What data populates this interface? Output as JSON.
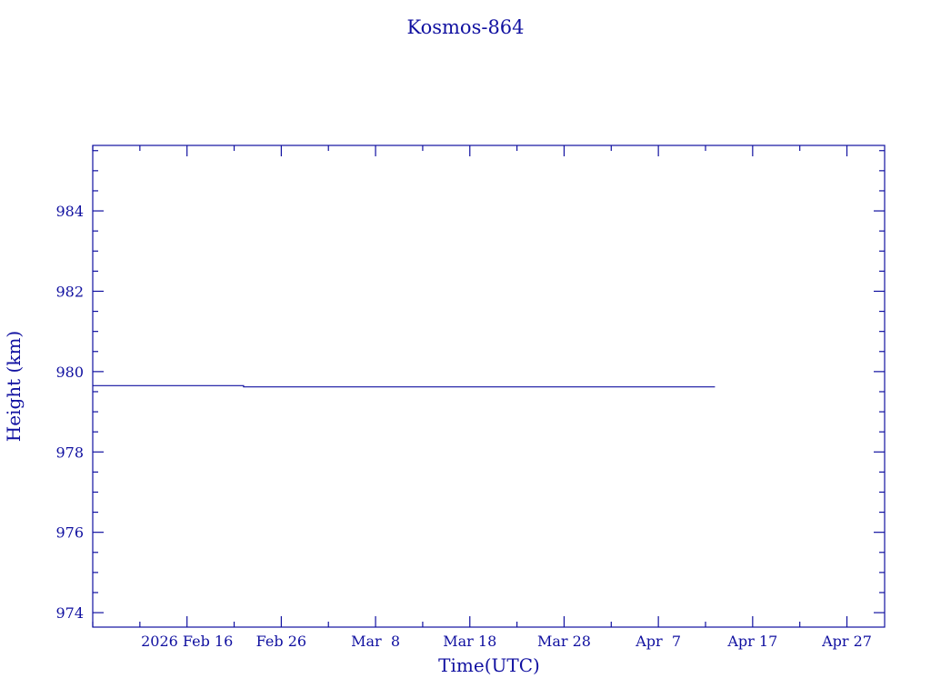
{
  "chart_data": {
    "type": "line",
    "title": "Kosmos-864",
    "xlabel": "Time(UTC)",
    "ylabel": "Height (km)",
    "xlim": [
      "2026-02-06",
      "2026-05-01"
    ],
    "ylim": [
      973.64,
      985.63
    ],
    "x_ticks": [
      {
        "date": "2026-02-16",
        "label": "2026 Feb 16"
      },
      {
        "date": "2026-02-26",
        "label": "Feb 26"
      },
      {
        "date": "2026-03-08",
        "label": "Mar  8"
      },
      {
        "date": "2026-03-18",
        "label": "Mar 18"
      },
      {
        "date": "2026-03-28",
        "label": "Mar 28"
      },
      {
        "date": "2026-04-07",
        "label": "Apr  7"
      },
      {
        "date": "2026-04-17",
        "label": "Apr 17"
      },
      {
        "date": "2026-04-27",
        "label": "Apr 27"
      }
    ],
    "x_minor_step_days": 5,
    "y_ticks": [
      974,
      976,
      978,
      980,
      982,
      984
    ],
    "y_minor_step": 0.5,
    "grid": false,
    "series": [
      {
        "points": [
          [
            "2026-02-06",
            979.65
          ],
          [
            "2026-02-22",
            979.65
          ],
          [
            "2026-02-22",
            979.62
          ],
          [
            "2026-04-13",
            979.62
          ]
        ]
      }
    ],
    "colors": {
      "axes": "#1010a0",
      "line": "#1010a0"
    }
  }
}
